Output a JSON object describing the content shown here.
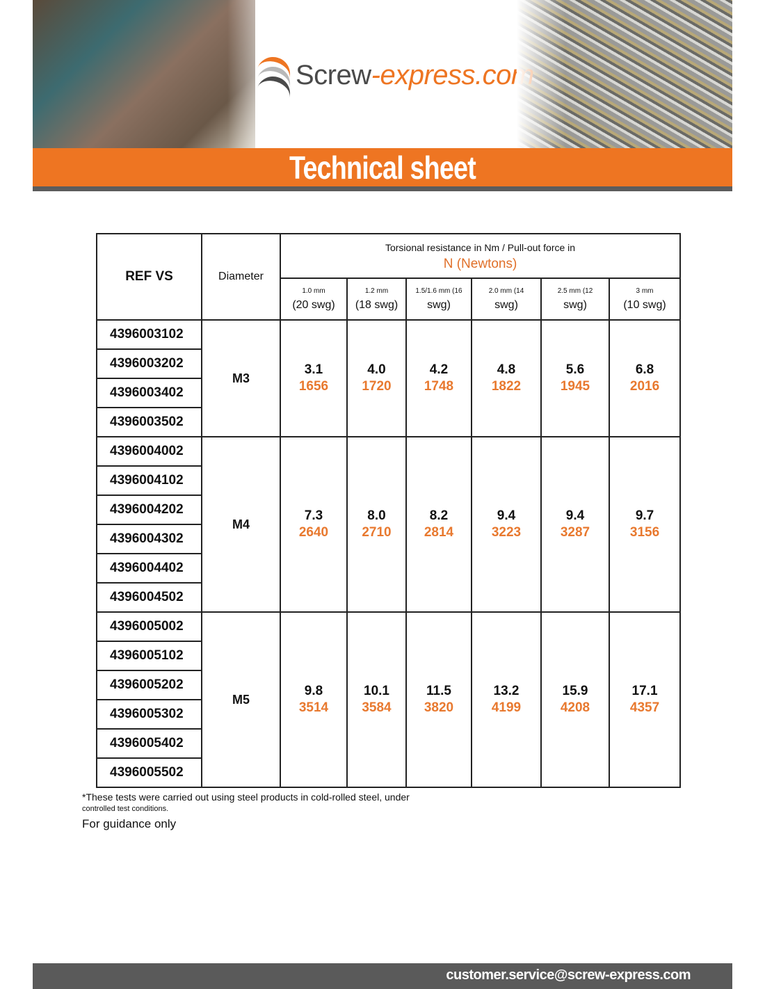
{
  "header": {
    "logo_part1": "Screw",
    "logo_part2": "-express.com",
    "title": "Technical sheet",
    "colors": {
      "accent": "#ee7522",
      "dark": "#5a5a5a"
    }
  },
  "table": {
    "col_ref": "REF VS",
    "col_diameter": "Diameter",
    "group_title": "Torsional resistance in Nm / Pull-out force in",
    "group_unit": "N (Newtons)",
    "wood_columns": [
      {
        "line1": "1.0 mm",
        "line2": "(20 swg)"
      },
      {
        "line1": "1.2 mm",
        "line2": "(18 swg)"
      },
      {
        "line1": "1.5/1.6 mm (16",
        "line2": "swg)"
      },
      {
        "line1": "2.0 mm (14",
        "line2": "swg)"
      },
      {
        "line1": "2.5 mm (12",
        "line2": "swg)"
      },
      {
        "line1": "3 mm",
        "line2": "(10 swg)"
      }
    ],
    "groups": [
      {
        "diameter": "M3",
        "refs": [
          "4396003102",
          "4396003202",
          "4396003402",
          "4396003502"
        ],
        "values": [
          {
            "nm": "3.1",
            "n": "1656"
          },
          {
            "nm": "4.0",
            "n": "1720"
          },
          {
            "nm": "4.2",
            "n": "1748"
          },
          {
            "nm": "4.8",
            "n": "1822"
          },
          {
            "nm": "5.6",
            "n": "1945"
          },
          {
            "nm": "6.8",
            "n": "2016"
          }
        ]
      },
      {
        "diameter": "M4",
        "refs": [
          "4396004002",
          "4396004102",
          "4396004202",
          "4396004302",
          "4396004402",
          "4396004502"
        ],
        "values": [
          {
            "nm": "7.3",
            "n": "2640"
          },
          {
            "nm": "8.0",
            "n": "2710"
          },
          {
            "nm": "8.2",
            "n": "2814"
          },
          {
            "nm": "9.4",
            "n": "3223"
          },
          {
            "nm": "9.4",
            "n": "3287"
          },
          {
            "nm": "9.7",
            "n": "3156"
          }
        ]
      },
      {
        "diameter": "M5",
        "refs": [
          "4396005002",
          "4396005102",
          "4396005202",
          "4396005302",
          "4396005402",
          "4396005502"
        ],
        "values": [
          {
            "nm": "9.8",
            "n": "3514"
          },
          {
            "nm": "10.1",
            "n": "3584"
          },
          {
            "nm": "11.5",
            "n": "3820"
          },
          {
            "nm": "13.2",
            "n": "4199"
          },
          {
            "nm": "15.9",
            "n": "4208"
          },
          {
            "nm": "17.1",
            "n": "4357"
          }
        ]
      }
    ]
  },
  "notes": {
    "line1": "*These tests were carried out using steel products in cold-rolled steel, under",
    "line2": "controlled test conditions.",
    "line3": "For guidance only"
  },
  "footer": {
    "email": "customer.service@screw-express.com"
  }
}
